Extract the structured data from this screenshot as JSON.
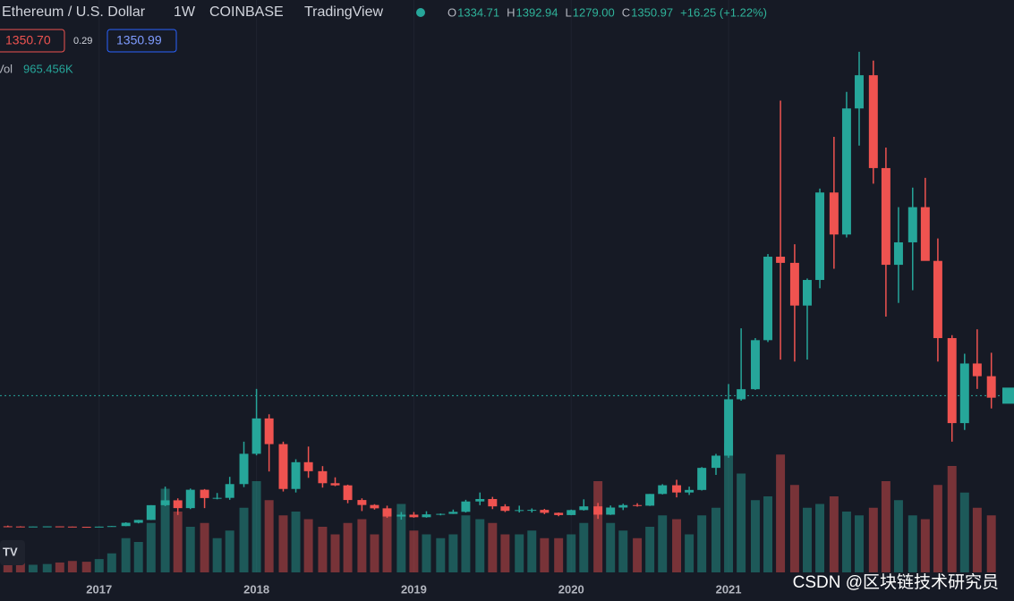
{
  "chart_data": {
    "type": "candlestick",
    "title": "Ethereum / U.S. Dollar",
    "interval": "1W",
    "exchange": "COINBASE",
    "source": "TradingView",
    "legend": {
      "labels": [
        "O",
        "H",
        "L",
        "C"
      ],
      "values": [
        1334.71,
        1392.94,
        1279,
        1350.97
      ],
      "value_labels": [
        "1334.71",
        "1392.94",
        "1279.00",
        "1350.97"
      ],
      "change": "+16.25 (+1.22%)"
    },
    "bid": "1350.70",
    "spread": "0.29",
    "ask": "1350.99",
    "volume_label": "Vol",
    "volume_value": "965.456K",
    "watermark": "CSDN @区块链技术研究员",
    "up_color": "#26a69a",
    "down_color": "#ef5350",
    "xlim": [
      2016.37,
      2022.74
    ],
    "xticks": [
      2017,
      2018,
      2019,
      2020,
      2021
    ],
    "ylim": [
      0,
      5400
    ],
    "volume_ylim": [
      0,
      4000000
    ],
    "x": [
      2016.42,
      2016.5,
      2016.58,
      2016.67,
      2016.75,
      2016.83,
      2016.92,
      2017.0,
      2017.08,
      2017.17,
      2017.25,
      2017.33,
      2017.42,
      2017.5,
      2017.58,
      2017.67,
      2017.75,
      2017.83,
      2017.92,
      2018.0,
      2018.08,
      2018.17,
      2018.25,
      2018.33,
      2018.42,
      2018.5,
      2018.58,
      2018.67,
      2018.75,
      2018.83,
      2018.92,
      2019.0,
      2019.08,
      2019.17,
      2019.25,
      2019.33,
      2019.42,
      2019.5,
      2019.58,
      2019.67,
      2019.75,
      2019.83,
      2019.92,
      2020.0,
      2020.08,
      2020.17,
      2020.25,
      2020.33,
      2020.42,
      2020.5,
      2020.58,
      2020.67,
      2020.75,
      2020.83,
      2020.92,
      2021.0,
      2021.08,
      2021.17,
      2021.25,
      2021.33,
      2021.42,
      2021.5,
      2021.58,
      2021.67,
      2021.75,
      2021.83,
      2021.92,
      2022.0,
      2022.08,
      2022.17,
      2022.25,
      2022.33,
      2022.42,
      2022.5,
      2022.58,
      2022.67
    ],
    "open": [
      14,
      12,
      11.7,
      11.9,
      13.1,
      11,
      8.6,
      8,
      10.7,
      16.2,
      50,
      79,
      230,
      280,
      200,
      388,
      303,
      305,
      446,
      756,
      1118,
      855,
      396,
      670,
      578,
      455,
      433,
      283,
      232,
      198,
      114,
      133,
      107,
      136,
      141,
      162,
      268,
      293,
      218,
      172,
      180,
      182,
      152,
      129,
      180,
      218,
      133,
      206,
      231,
      225,
      345,
      434,
      360,
      386,
      612,
      737,
      1314,
      1417,
      1919,
      2773,
      2710,
      2273,
      2535,
      3430,
      3000,
      4290,
      4630,
      3680,
      2690,
      2920,
      3280,
      2730,
      1940,
      1070,
      1680,
      1550
    ],
    "high": [
      21,
      14.5,
      12.2,
      13.8,
      13.3,
      11.1,
      9,
      11.3,
      16.8,
      55,
      80,
      230,
      420,
      300,
      400,
      395,
      355,
      520,
      880,
      1420,
      1160,
      880,
      700,
      830,
      630,
      515,
      440,
      300,
      240,
      225,
      160,
      160,
      168,
      145,
      185,
      285,
      360,
      315,
      240,
      225,
      197,
      192,
      155,
      185,
      290,
      253,
      227,
      245,
      250,
      345,
      445,
      490,
      420,
      620,
      755,
      1470,
      2040,
      1940,
      2800,
      4370,
      2900,
      2550,
      3470,
      4000,
      4460,
      4870,
      4780,
      3890,
      3280,
      3480,
      3580,
      2960,
      1970,
      1780,
      2030,
      1790
    ],
    "low": [
      11,
      9.5,
      10.5,
      11.3,
      10.4,
      7.8,
      6.9,
      8,
      10.4,
      15.5,
      44,
      78,
      220,
      130,
      190,
      200,
      290,
      285,
      415,
      740,
      575,
      370,
      360,
      510,
      410,
      425,
      250,
      170,
      185,
      100,
      82,
      102,
      102,
      126,
      140,
      155,
      230,
      190,
      160,
      155,
      155,
      138,
      117,
      127,
      175,
      90,
      130,
      180,
      215,
      222,
      340,
      310,
      335,
      380,
      540,
      715,
      1300,
      1410,
      1900,
      1720,
      1700,
      1720,
      2450,
      2650,
      2970,
      3910,
      3520,
      2160,
      2300,
      2430,
      2780,
      1700,
      880,
      1000,
      1420,
      1220
    ],
    "close": [
      12,
      11.7,
      11.9,
      13.1,
      11,
      8.6,
      8,
      10.7,
      16.2,
      50,
      79,
      230,
      280,
      200,
      388,
      303,
      305,
      446,
      756,
      1118,
      855,
      396,
      670,
      578,
      455,
      433,
      283,
      232,
      198,
      114,
      133,
      107,
      136,
      141,
      162,
      268,
      293,
      218,
      172,
      180,
      182,
      152,
      129,
      180,
      218,
      133,
      206,
      231,
      225,
      345,
      434,
      360,
      386,
      612,
      737,
      1314,
      1417,
      1919,
      2773,
      2710,
      2273,
      2535,
      3430,
      3000,
      4290,
      4630,
      3680,
      2690,
      2920,
      3280,
      2730,
      1940,
      1070,
      1680,
      1550,
      1330
    ],
    "volume": [
      300000,
      250000,
      200000,
      220000,
      260000,
      300000,
      280000,
      350000,
      500000,
      900000,
      800000,
      1300000,
      2200000,
      1600000,
      1200000,
      1300000,
      900000,
      1100000,
      1700000,
      2400000,
      1900000,
      1500000,
      1600000,
      1400000,
      1200000,
      1000000,
      1300000,
      1400000,
      1000000,
      1600000,
      1800000,
      1100000,
      1000000,
      900000,
      1000000,
      1500000,
      1400000,
      1300000,
      1000000,
      1000000,
      1100000,
      900000,
      900000,
      1000000,
      1300000,
      2400000,
      1300000,
      1100000,
      900000,
      1200000,
      1500000,
      1400000,
      1000000,
      1500000,
      1700000,
      3400000,
      2600000,
      1900000,
      2000000,
      3100000,
      2300000,
      1700000,
      1800000,
      2000000,
      1600000,
      1500000,
      1700000,
      2400000,
      1900000,
      1500000,
      1400000,
      2300000,
      2800000,
      2100000,
      1700000,
      1500000
    ]
  }
}
